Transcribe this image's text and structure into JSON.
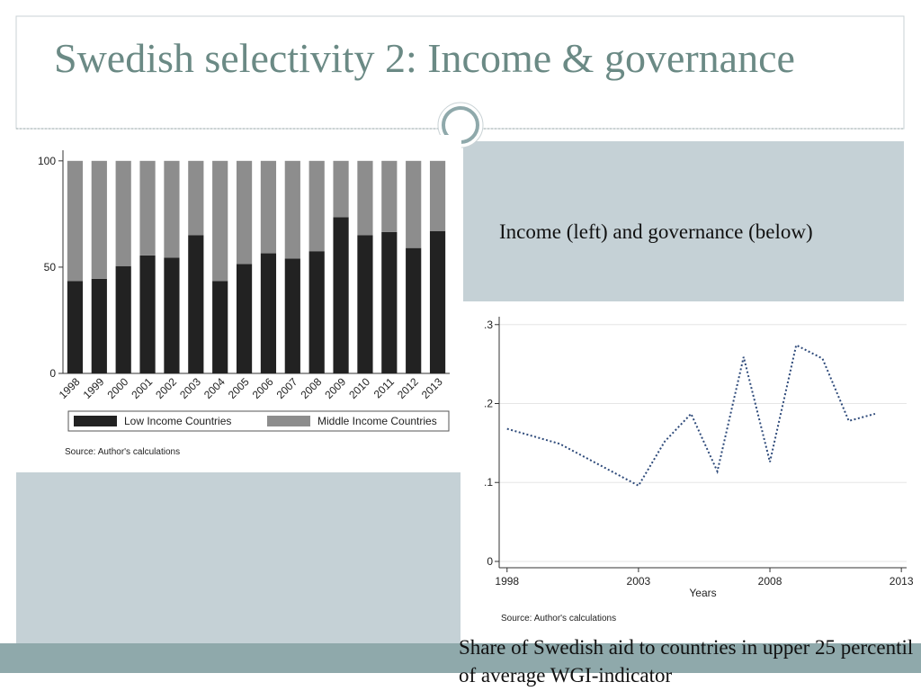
{
  "slide": {
    "title": "Swedish selectivity 2: Income & governance",
    "caption": "Income (left) and governance (below)",
    "bottom_text": "Share of Swedish aid to countries in upper 25 percentil of average WGI-indicator"
  },
  "chart_data": [
    {
      "type": "bar",
      "stacked": true,
      "note": "Source: Author's calculations",
      "categories": [
        "1998",
        "1999",
        "2000",
        "2001",
        "2002",
        "2003",
        "2004",
        "2005",
        "2006",
        "2007",
        "2008",
        "2009",
        "2010",
        "2011",
        "2012",
        "2013"
      ],
      "series": [
        {
          "name": "Low Income Countries",
          "color": "#222222",
          "values": [
            43.5,
            44.5,
            50.5,
            55.5,
            54.5,
            65,
            43.5,
            51.5,
            56.5,
            54,
            57.5,
            73.5,
            65,
            66.5,
            59,
            67
          ]
        },
        {
          "name": "Middle Income Countries",
          "color": "#8d8d8d",
          "values": [
            56.5,
            55.5,
            49.5,
            44.5,
            45.5,
            35,
            56.5,
            48.5,
            43.5,
            46,
            42.5,
            26.5,
            35,
            33.5,
            41,
            33
          ]
        }
      ],
      "ylim": [
        0,
        105
      ],
      "yticks": [
        0,
        50,
        100
      ],
      "grid": false,
      "legend": "bottom"
    },
    {
      "type": "line",
      "note": "Source: Author's calculations",
      "xlabel": "Years",
      "x": [
        1998,
        2000,
        2003,
        2004,
        2005,
        2006,
        2007,
        2008,
        2009,
        2010,
        2011,
        2012
      ],
      "values": [
        0.168,
        0.149,
        0.096,
        0.152,
        0.187,
        0.114,
        0.259,
        0.126,
        0.274,
        0.257,
        0.178,
        0.187
      ],
      "color": "#2e4a7a",
      "dashed": true,
      "xlim": [
        1997.7,
        2013.2
      ],
      "xticks": [
        1998,
        2003,
        2008,
        2013
      ],
      "ylim": [
        -0.008,
        0.31
      ],
      "yticks": [
        0,
        {
          "value": 0.1,
          "label": ".1"
        },
        {
          "value": 0.2,
          "label": ".2"
        },
        {
          "value": 0.3,
          "label": ".3"
        }
      ],
      "grid": true
    }
  ]
}
